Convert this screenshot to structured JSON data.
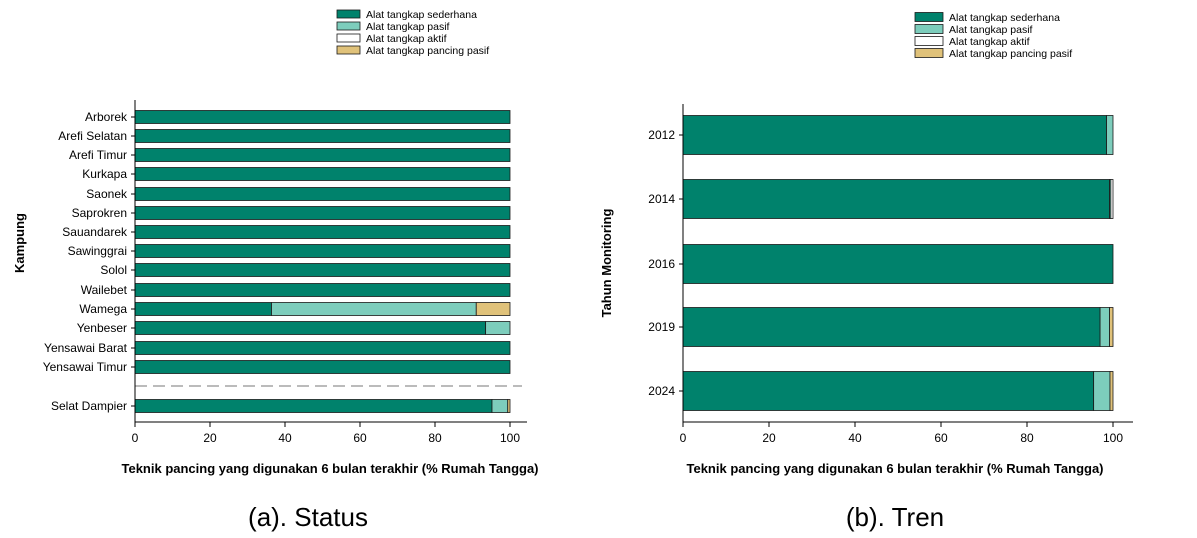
{
  "colors": {
    "Alat tangkap sederhana": "#00826c",
    "Alat tangkap pasif": "#7dcdbc",
    "Alat tangkap aktif": "#ffffff",
    "Alat tangkap pancing pasif": "#e0c27a"
  },
  "chart_data": [
    {
      "type": "bar",
      "orientation": "horizontal",
      "stacked": true,
      "caption": "(a). Status",
      "xlabel": "Teknik pancing yang digunakan 6 bulan terakhir (% Rumah Tangga)",
      "ylabel": "Kampung",
      "xlim": [
        0,
        105
      ],
      "xticks": [
        0,
        20,
        40,
        60,
        80,
        100
      ],
      "legend_position": "top-right",
      "categories": [
        "Arborek",
        "Arefi Selatan",
        "Arefi Timur",
        "Kurkapa",
        "Saonek",
        "Saprokren",
        "Sauandarek",
        "Sawinggrai",
        "Solol",
        "Wailebet",
        "Wamega",
        "Yenbeser",
        "Yensawai Barat",
        "Yensawai Timur",
        "Selat Dampier"
      ],
      "series": [
        {
          "name": "Alat tangkap sederhana",
          "values": [
            100,
            100,
            100,
            100,
            100,
            100,
            100,
            100,
            100,
            100,
            36.4,
            93.5,
            100,
            100,
            95.2
          ]
        },
        {
          "name": "Alat tangkap pasif",
          "values": [
            0,
            0,
            0,
            0,
            0,
            0,
            0,
            0,
            0,
            0,
            54.6,
            6.5,
            0,
            0,
            4.2
          ]
        },
        {
          "name": "Alat tangkap aktif",
          "values": [
            0,
            0,
            0,
            0,
            0,
            0,
            0,
            0,
            0,
            0,
            0,
            0,
            0,
            0,
            0
          ]
        },
        {
          "name": "Alat tangkap pancing pasif",
          "values": [
            0,
            0,
            0,
            0,
            0,
            0,
            0,
            0,
            0,
            0,
            9,
            0,
            0,
            0,
            0.6
          ]
        }
      ]
    },
    {
      "type": "bar",
      "orientation": "horizontal",
      "stacked": true,
      "caption": "(b). Tren",
      "xlabel": "Teknik pancing yang digunakan 6 bulan terakhir (% Rumah Tangga)",
      "ylabel": "Tahun Monitoring",
      "xlim": [
        0,
        105
      ],
      "xticks": [
        0,
        20,
        40,
        60,
        80,
        100
      ],
      "legend_position": "top-right",
      "categories": [
        "2012",
        "2014",
        "2016",
        "2019",
        "2024"
      ],
      "series": [
        {
          "name": "Alat tangkap sederhana",
          "values": [
            98.5,
            99.2,
            100,
            97,
            95.5
          ]
        },
        {
          "name": "Alat tangkap pasif",
          "values": [
            1.5,
            0.3,
            0,
            2.2,
            3.8
          ]
        },
        {
          "name": "Alat tangkap aktif",
          "values": [
            0,
            0.5,
            0,
            0,
            0
          ]
        },
        {
          "name": "Alat tangkap pancing pasif",
          "values": [
            0,
            0,
            0,
            0.8,
            0.7
          ]
        }
      ]
    }
  ]
}
